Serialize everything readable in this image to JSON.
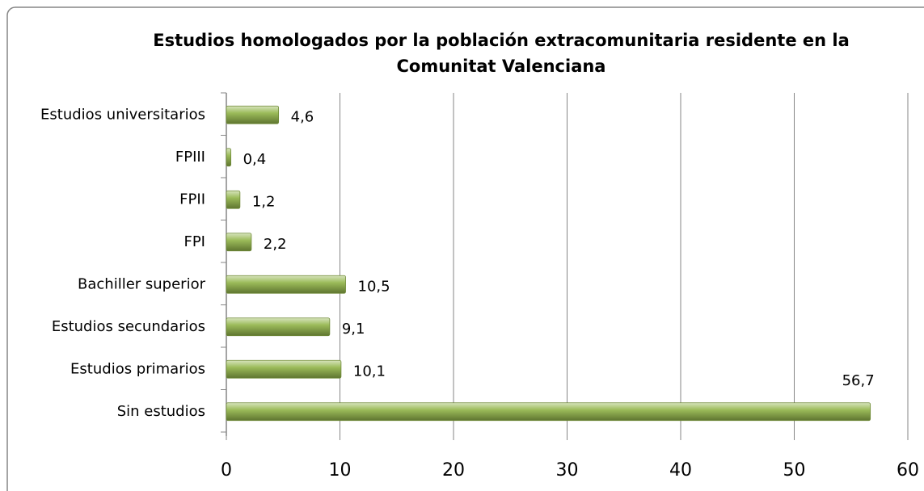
{
  "chart_data": {
    "type": "hbar",
    "title": "Estudios homologados por la población extracomunitaria residente en la Comunitat Valenciana",
    "categories": [
      "Estudios universitarios",
      "FPIII",
      "FPII",
      "FPI",
      "Bachiller superior",
      "Estudios secundarios",
      "Estudios primarios",
      "Sin estudios"
    ],
    "values": [
      4.6,
      0.4,
      1.2,
      2.2,
      10.5,
      9.1,
      10.1,
      56.7
    ],
    "value_labels": [
      "4,6",
      "0,4",
      "1,2",
      "2,2",
      "10,5",
      "9,1",
      "10,1",
      "56,7"
    ],
    "color": "#9bbb59",
    "xlim": [
      0,
      60
    ],
    "xticks": [
      0,
      10,
      20,
      30,
      40,
      50,
      60
    ],
    "grid": true
  }
}
